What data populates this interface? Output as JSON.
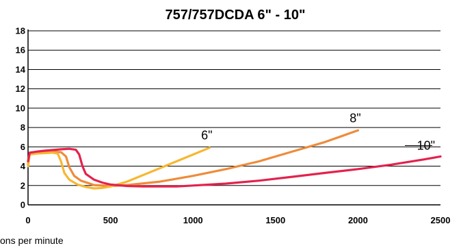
{
  "chart_data": {
    "type": "line",
    "title": "757/757DCDA 6\" - 10\"",
    "xlabel": "ons per minute",
    "ylabel": "",
    "xlim": [
      0,
      2500
    ],
    "ylim": [
      0,
      18
    ],
    "xticks": [
      "0",
      "500",
      "1000",
      "1500",
      "2000",
      "2500"
    ],
    "yticks": [
      "0",
      "2",
      "4",
      "6",
      "8",
      "10",
      "12",
      "14",
      "16",
      "18"
    ],
    "grid": true,
    "series": [
      {
        "name": "6\"",
        "color": "#F7B731",
        "x": [
          0,
          10,
          50,
          100,
          150,
          180,
          200,
          220,
          250,
          300,
          350,
          400,
          450,
          500,
          600,
          700,
          800,
          900,
          1000,
          1100
        ],
        "y": [
          4.0,
          5.2,
          5.3,
          5.35,
          5.4,
          5.3,
          4.5,
          3.3,
          2.6,
          2.1,
          1.85,
          1.7,
          1.75,
          1.9,
          2.4,
          3.1,
          3.8,
          4.5,
          5.2,
          5.9
        ]
      },
      {
        "name": "8\"",
        "color": "#EE8B3A",
        "x": [
          0,
          10,
          50,
          100,
          150,
          200,
          230,
          250,
          280,
          320,
          400,
          500,
          600,
          800,
          1000,
          1200,
          1400,
          1600,
          1800,
          2000
        ],
        "y": [
          4.2,
          5.3,
          5.4,
          5.45,
          5.5,
          5.45,
          5.0,
          3.9,
          3.0,
          2.5,
          2.05,
          1.95,
          2.05,
          2.4,
          3.0,
          3.7,
          4.5,
          5.5,
          6.5,
          7.7
        ]
      },
      {
        "name": "10\"",
        "color": "#E3224D",
        "x": [
          0,
          10,
          50,
          100,
          200,
          250,
          290,
          310,
          330,
          350,
          400,
          450,
          500,
          600,
          700,
          800,
          900,
          1000,
          1200,
          1400,
          1600,
          1800,
          2000,
          2200,
          2400,
          2500
        ],
        "y": [
          4.5,
          5.4,
          5.5,
          5.6,
          5.75,
          5.8,
          5.7,
          5.2,
          4.0,
          3.2,
          2.6,
          2.3,
          2.1,
          1.95,
          1.9,
          1.9,
          1.9,
          2.0,
          2.2,
          2.5,
          2.9,
          3.3,
          3.7,
          4.15,
          4.7,
          5.0
        ]
      }
    ]
  }
}
